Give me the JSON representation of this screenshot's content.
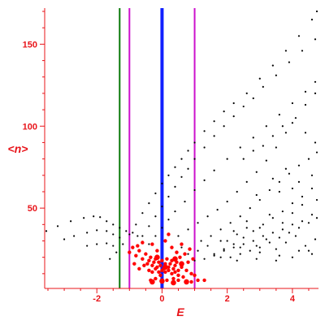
{
  "chart_data": {
    "type": "scatter",
    "title": "",
    "xlabel": "E",
    "ylabel": "<n>",
    "xlim": [
      -3.6,
      4.8
    ],
    "ylim": [
      1,
      172
    ],
    "x_ticks": [
      -2,
      0,
      2,
      4
    ],
    "y_ticks": [
      50,
      100,
      150
    ],
    "grid": false,
    "legend": "none",
    "colors": {
      "axis": "#e8141a",
      "band_points": "#000000",
      "dense_points": "#ff0000",
      "line_green": "#0a7a0a",
      "line_magenta": "#cc11cc",
      "line_blue": "#1020ff"
    },
    "vertical_lines": [
      {
        "x": -1.3,
        "color": "#0a7a0a"
      },
      {
        "x": -1.0,
        "color": "#cc11cc"
      },
      {
        "x": 0.0,
        "color": "#1020ff"
      },
      {
        "x": 1.0,
        "color": "#cc11cc"
      }
    ],
    "series": [
      {
        "color": "#000000",
        "points": [
          [
            -3.55,
            36
          ],
          [
            -3.2,
            39
          ],
          [
            -2.8,
            42
          ],
          [
            -2.4,
            44
          ],
          [
            -2.1,
            45
          ],
          [
            -1.9,
            44.5
          ],
          [
            -1.7,
            42
          ],
          [
            -1.5,
            40
          ],
          [
            -1.3,
            38
          ],
          [
            -1.1,
            36
          ],
          [
            -0.9,
            35
          ],
          [
            -0.75,
            33
          ],
          [
            -3.0,
            31
          ],
          [
            -2.7,
            33
          ],
          [
            -2.3,
            35
          ],
          [
            -2.0,
            36.5
          ],
          [
            -1.7,
            36
          ],
          [
            -1.5,
            34
          ],
          [
            -1.3,
            32
          ],
          [
            -2.3,
            27
          ],
          [
            -2.0,
            28
          ],
          [
            -1.7,
            28.5
          ],
          [
            -1.5,
            27
          ],
          [
            -1.6,
            19
          ],
          [
            -1.4,
            23
          ],
          [
            -1.2,
            28
          ],
          [
            -1.0,
            34
          ],
          [
            -0.8,
            40
          ],
          [
            -0.6,
            47
          ],
          [
            -0.4,
            53
          ],
          [
            -0.2,
            59
          ],
          [
            0.0,
            65
          ],
          [
            0.2,
            70
          ],
          [
            0.4,
            75
          ],
          [
            0.6,
            80
          ],
          [
            0.8,
            85
          ],
          [
            1.0,
            90
          ],
          [
            1.3,
            97
          ],
          [
            1.6,
            103
          ],
          [
            1.9,
            109
          ],
          [
            2.2,
            114
          ],
          [
            2.6,
            120
          ],
          [
            3.0,
            129
          ],
          [
            3.4,
            137
          ],
          [
            3.8,
            146
          ],
          [
            4.2,
            155
          ],
          [
            4.6,
            165
          ],
          [
            4.75,
            170
          ],
          [
            -0.6,
            33
          ],
          [
            -0.4,
            39
          ],
          [
            -0.2,
            45
          ],
          [
            0.0,
            51
          ],
          [
            0.2,
            57
          ],
          [
            0.4,
            63
          ],
          [
            0.6,
            69
          ],
          [
            0.8,
            74
          ],
          [
            1.0,
            80
          ],
          [
            1.3,
            87
          ],
          [
            1.6,
            94
          ],
          [
            1.9,
            100
          ],
          [
            2.2,
            106
          ],
          [
            2.5,
            112
          ],
          [
            2.8,
            117
          ],
          [
            3.1,
            124
          ],
          [
            3.5,
            131
          ],
          [
            3.9,
            139
          ],
          [
            4.3,
            146
          ],
          [
            4.7,
            153
          ],
          [
            -0.4,
            28
          ],
          [
            -0.2,
            33
          ],
          [
            0.0,
            38
          ],
          [
            0.2,
            43
          ],
          [
            0.4,
            48
          ],
          [
            0.7,
            54
          ],
          [
            1.0,
            61
          ],
          [
            1.3,
            67
          ],
          [
            1.6,
            73
          ],
          [
            2.0,
            80
          ],
          [
            2.4,
            87
          ],
          [
            2.8,
            93
          ],
          [
            3.2,
            100
          ],
          [
            3.6,
            107
          ],
          [
            4.0,
            114
          ],
          [
            4.4,
            121
          ],
          [
            4.7,
            127
          ],
          [
            0.5,
            33
          ],
          [
            0.8,
            37
          ],
          [
            1.1,
            41
          ],
          [
            1.4,
            45
          ],
          [
            1.7,
            49
          ],
          [
            2.0,
            54
          ],
          [
            2.3,
            60
          ],
          [
            2.6,
            66
          ],
          [
            2.9,
            72
          ],
          [
            3.2,
            79
          ],
          [
            3.5,
            87
          ],
          [
            3.8,
            96
          ],
          [
            4.1,
            105
          ],
          [
            4.4,
            113
          ],
          [
            4.7,
            120
          ],
          [
            1.2,
            30
          ],
          [
            1.5,
            33
          ],
          [
            1.8,
            37
          ],
          [
            2.1,
            41
          ],
          [
            2.4,
            45
          ],
          [
            2.7,
            50
          ],
          [
            3.0,
            55
          ],
          [
            3.3,
            61
          ],
          [
            3.6,
            66
          ],
          [
            3.9,
            71
          ],
          [
            4.2,
            76
          ],
          [
            4.5,
            80
          ],
          [
            4.75,
            84
          ],
          [
            1.6,
            22
          ],
          [
            1.9,
            25
          ],
          [
            2.2,
            28
          ],
          [
            2.5,
            32
          ],
          [
            2.8,
            36
          ],
          [
            3.1,
            40
          ],
          [
            3.4,
            44
          ],
          [
            3.7,
            48
          ],
          [
            4.0,
            53
          ],
          [
            4.3,
            57
          ],
          [
            4.6,
            62
          ],
          [
            2.1,
            20
          ],
          [
            2.4,
            22
          ],
          [
            2.7,
            24
          ],
          [
            3.0,
            26
          ],
          [
            3.3,
            29
          ],
          [
            3.6,
            32
          ],
          [
            3.9,
            35
          ],
          [
            4.2,
            38
          ],
          [
            4.5,
            41
          ],
          [
            4.75,
            44
          ],
          [
            1.0,
            18
          ],
          [
            1.3,
            19
          ],
          [
            1.6,
            21
          ],
          [
            1.9,
            24
          ],
          [
            2.2,
            26
          ],
          [
            2.5,
            28
          ],
          [
            2.8,
            30
          ],
          [
            3.1,
            33
          ],
          [
            3.4,
            35
          ],
          [
            3.7,
            37
          ],
          [
            4.0,
            40
          ],
          [
            4.3,
            42
          ],
          [
            2.0,
            30
          ],
          [
            2.3,
            34
          ],
          [
            2.6,
            38
          ],
          [
            2.9,
            27
          ],
          [
            3.2,
            31
          ],
          [
            3.5,
            25
          ],
          [
            3.8,
            29
          ],
          [
            4.1,
            33
          ],
          [
            4.4,
            27
          ],
          [
            4.7,
            31
          ],
          [
            2.2,
            36
          ],
          [
            2.6,
            42
          ],
          [
            3.0,
            38
          ],
          [
            3.3,
            46
          ],
          [
            3.7,
            41
          ],
          [
            4.0,
            47
          ],
          [
            4.3,
            52
          ],
          [
            4.6,
            46
          ],
          [
            4.75,
            55
          ],
          [
            1.8,
            30
          ],
          [
            2.4,
            26
          ],
          [
            3.0,
            23
          ],
          [
            3.6,
            21
          ],
          [
            4.2,
            24
          ],
          [
            4.6,
            22
          ],
          [
            2.9,
            58
          ],
          [
            3.4,
            68
          ],
          [
            3.8,
            74
          ],
          [
            4.2,
            66
          ],
          [
            4.6,
            70
          ],
          [
            3.6,
            60
          ],
          [
            4.0,
            62
          ],
          [
            2.5,
            80
          ],
          [
            2.8,
            85
          ],
          [
            3.1,
            88
          ],
          [
            3.4,
            94
          ],
          [
            3.7,
            100
          ],
          [
            4.0,
            102
          ],
          [
            4.4,
            96
          ],
          [
            4.7,
            90
          ],
          [
            1.1,
            24
          ],
          [
            1.4,
            27
          ],
          [
            1.8,
            20
          ],
          [
            0.8,
            22
          ],
          [
            0.6,
            26
          ],
          [
            2.3,
            18
          ],
          [
            2.9,
            19
          ],
          [
            3.5,
            18
          ],
          [
            4.0,
            20
          ],
          [
            4.5,
            24
          ]
        ]
      },
      {
        "color": "#ff0000",
        "points": [
          [
            -0.9,
            26
          ],
          [
            -0.8,
            21
          ],
          [
            -0.7,
            24
          ],
          [
            -0.6,
            19
          ],
          [
            -0.5,
            22
          ],
          [
            -0.45,
            16
          ],
          [
            -0.4,
            18
          ],
          [
            -0.35,
            20
          ],
          [
            -0.3,
            15
          ],
          [
            -0.25,
            17
          ],
          [
            -0.2,
            19
          ],
          [
            -0.15,
            14
          ],
          [
            -0.1,
            17
          ],
          [
            -0.05,
            15
          ],
          [
            0.0,
            18
          ],
          [
            0.05,
            13
          ],
          [
            0.1,
            16
          ],
          [
            0.15,
            19
          ],
          [
            0.2,
            14
          ],
          [
            0.25,
            16
          ],
          [
            0.3,
            18
          ],
          [
            0.35,
            13
          ],
          [
            0.4,
            15
          ],
          [
            0.45,
            17
          ],
          [
            0.5,
            12
          ],
          [
            0.55,
            20
          ],
          [
            0.6,
            14
          ],
          [
            0.7,
            22
          ],
          [
            0.8,
            17
          ],
          [
            0.9,
            10
          ],
          [
            -0.7,
            13
          ],
          [
            -0.55,
            15
          ],
          [
            -0.4,
            12
          ],
          [
            -0.3,
            11
          ],
          [
            -0.2,
            13
          ],
          [
            -0.1,
            11
          ],
          [
            0.0,
            12
          ],
          [
            0.1,
            11
          ],
          [
            0.2,
            12
          ],
          [
            0.3,
            10
          ],
          [
            0.4,
            11
          ],
          [
            0.5,
            9
          ],
          [
            -0.3,
            28
          ],
          [
            0.1,
            30
          ],
          [
            0.3,
            26
          ],
          [
            0.6,
            28
          ],
          [
            -0.6,
            29
          ],
          [
            0.2,
            34
          ],
          [
            0.45,
            23
          ],
          [
            -0.15,
            24
          ],
          [
            0.75,
            12
          ],
          [
            -0.85,
            16
          ],
          [
            -1.0,
            23
          ],
          [
            -0.05,
            9
          ],
          [
            0.35,
            7
          ],
          [
            0.65,
            8
          ],
          [
            -0.35,
            6
          ],
          [
            -0.2,
            7
          ],
          [
            0.15,
            6
          ],
          [
            0.5,
            6
          ],
          [
            1.0,
            9
          ],
          [
            1.1,
            6
          ],
          [
            1.3,
            6
          ],
          [
            0.9,
            5
          ],
          [
            0.85,
            25
          ],
          [
            -0.75,
            27
          ],
          [
            0.95,
            19
          ]
        ]
      }
    ],
    "big_red_points": [
      [
        -0.3,
        5
      ],
      [
        0.0,
        5.5
      ],
      [
        0.35,
        4.5
      ],
      [
        0.6,
        16
      ],
      [
        0.1,
        14
      ],
      [
        -0.15,
        20
      ],
      [
        0.4,
        19
      ],
      [
        0.75,
        5
      ]
    ]
  }
}
